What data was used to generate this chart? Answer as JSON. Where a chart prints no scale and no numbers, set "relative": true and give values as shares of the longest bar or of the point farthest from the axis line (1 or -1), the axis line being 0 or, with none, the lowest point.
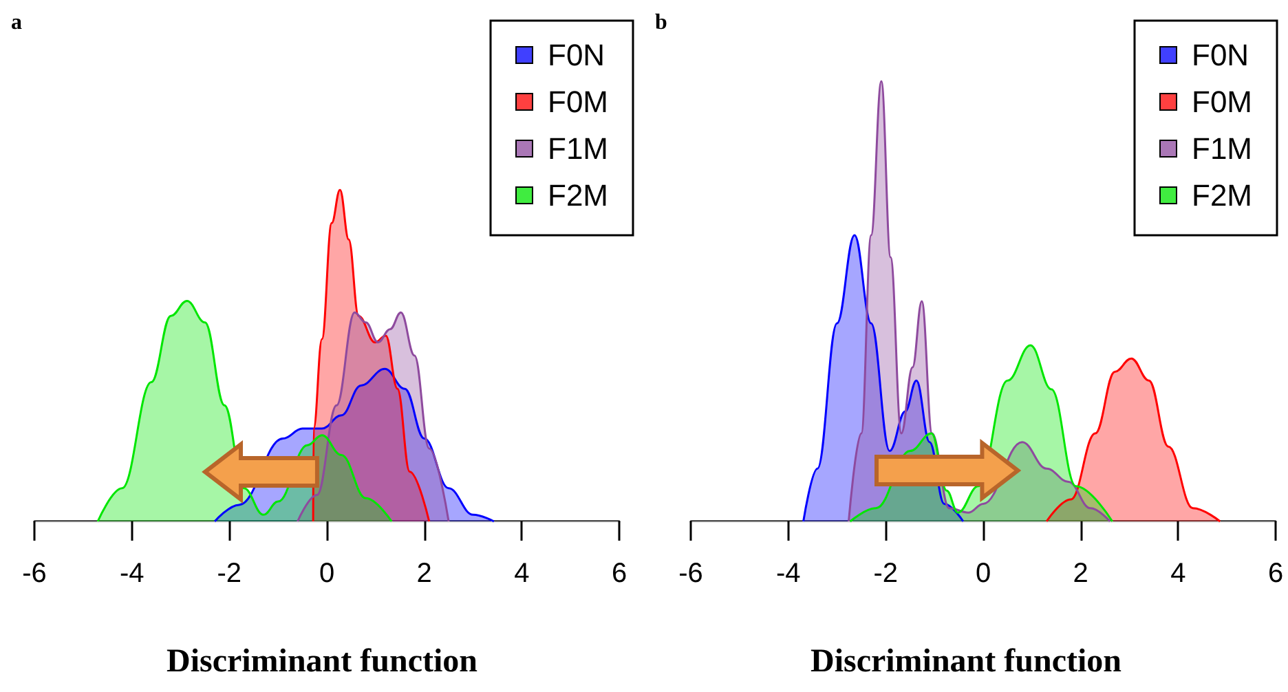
{
  "chart_data": [
    {
      "type": "area",
      "title": "a",
      "xlabel": "Discriminant function",
      "relative": true,
      "xlim": [
        -6,
        6
      ],
      "xticks": [
        -6,
        -4,
        -2,
        0,
        2,
        4,
        6
      ],
      "legend": "top right",
      "grid": false,
      "marker": "none",
      "series": [
        {
          "name": "F0N",
          "color": "#0000ff",
          "x": [
            -2.3,
            -1.8,
            -0.9,
            -0.5,
            -0.1,
            0.3,
            0.7,
            1.19,
            1.6,
            2.0,
            2.5,
            3.0,
            3.43
          ],
          "values": [
            0,
            0.05,
            0.25,
            0.28,
            0.28,
            0.32,
            0.41,
            0.46,
            0.4,
            0.25,
            0.1,
            0.02,
            0
          ]
        },
        {
          "name": "F0M",
          "color": "#ff0000",
          "x": [
            -0.28,
            -0.27,
            -0.1,
            0.1,
            0.27,
            0.45,
            0.65,
            0.99,
            1.21,
            1.45,
            1.7,
            2.1
          ],
          "values": [
            0,
            0.28,
            0.55,
            0.9,
            1,
            0.85,
            0.62,
            0.54,
            0.56,
            0.4,
            0.15,
            0
          ]
        },
        {
          "name": "F1M",
          "color": "#8e4a9e",
          "x": [
            -0.6,
            -0.2,
            0.2,
            0.57,
            0.8,
            1.05,
            1.3,
            1.52,
            1.8,
            2.1,
            2.5
          ],
          "values": [
            0,
            0.08,
            0.35,
            0.63,
            0.6,
            0.54,
            0.58,
            0.63,
            0.5,
            0.22,
            0
          ]
        },
        {
          "name": "F2M",
          "color": "#00e600",
          "x": [
            -4.7,
            -4.2,
            -3.6,
            -3.2,
            -2.87,
            -2.5,
            -2.1,
            -1.7,
            -1.3,
            -1.0,
            -0.4,
            -0.1,
            0.3,
            0.8,
            1.33
          ],
          "values": [
            0,
            0.1,
            0.42,
            0.62,
            0.665,
            0.6,
            0.35,
            0.1,
            0.02,
            0.06,
            0.23,
            0.26,
            0.2,
            0.07,
            0
          ]
        }
      ]
    },
    {
      "type": "area",
      "title": "b",
      "xlabel": "Discriminant function",
      "relative": true,
      "xlim": [
        -6,
        6
      ],
      "xticks": [
        -6,
        -4,
        -2,
        0,
        2,
        4,
        6
      ],
      "legend": "top right",
      "grid": false,
      "marker": "none",
      "series": [
        {
          "name": "F0N",
          "color": "#0000ff",
          "x": [
            -3.69,
            -3.4,
            -3.0,
            -2.64,
            -2.3,
            -1.92,
            -1.6,
            -1.37,
            -1.1,
            -0.8,
            -0.41
          ],
          "values": [
            0,
            0.12,
            0.45,
            0.65,
            0.45,
            0.16,
            0.25,
            0.32,
            0.18,
            0.04,
            0
          ]
        },
        {
          "name": "F0M",
          "color": "#ff0000",
          "x": [
            1.3,
            1.8,
            2.3,
            2.7,
            3.04,
            3.4,
            3.8,
            4.3,
            4.86
          ],
          "values": [
            0,
            0.05,
            0.2,
            0.34,
            0.37,
            0.32,
            0.17,
            0.03,
            0
          ]
        },
        {
          "name": "F1M",
          "color": "#8e4a9e",
          "x": [
            -2.76,
            -2.5,
            -2.3,
            -2.09,
            -1.9,
            -1.68,
            -1.45,
            -1.26,
            -1.05,
            -0.7,
            -0.3,
            0.0,
            0.8,
            1.3,
            1.75,
            2.2,
            2.6
          ],
          "values": [
            0,
            0.2,
            0.65,
            1,
            0.6,
            0.2,
            0.35,
            0.5,
            0.2,
            0.03,
            0.02,
            0.04,
            0.18,
            0.12,
            0.09,
            0.03,
            0
          ]
        },
        {
          "name": "F2M",
          "color": "#00e600",
          "x": [
            -2.73,
            -2.2,
            -1.5,
            -1.06,
            -0.75,
            -0.52,
            -0.1,
            0.5,
            0.97,
            1.4,
            1.9,
            2.65
          ],
          "values": [
            0,
            0.03,
            0.16,
            0.2,
            0.07,
            0.02,
            0.08,
            0.32,
            0.4,
            0.3,
            0.08,
            0
          ]
        }
      ]
    }
  ]
}
